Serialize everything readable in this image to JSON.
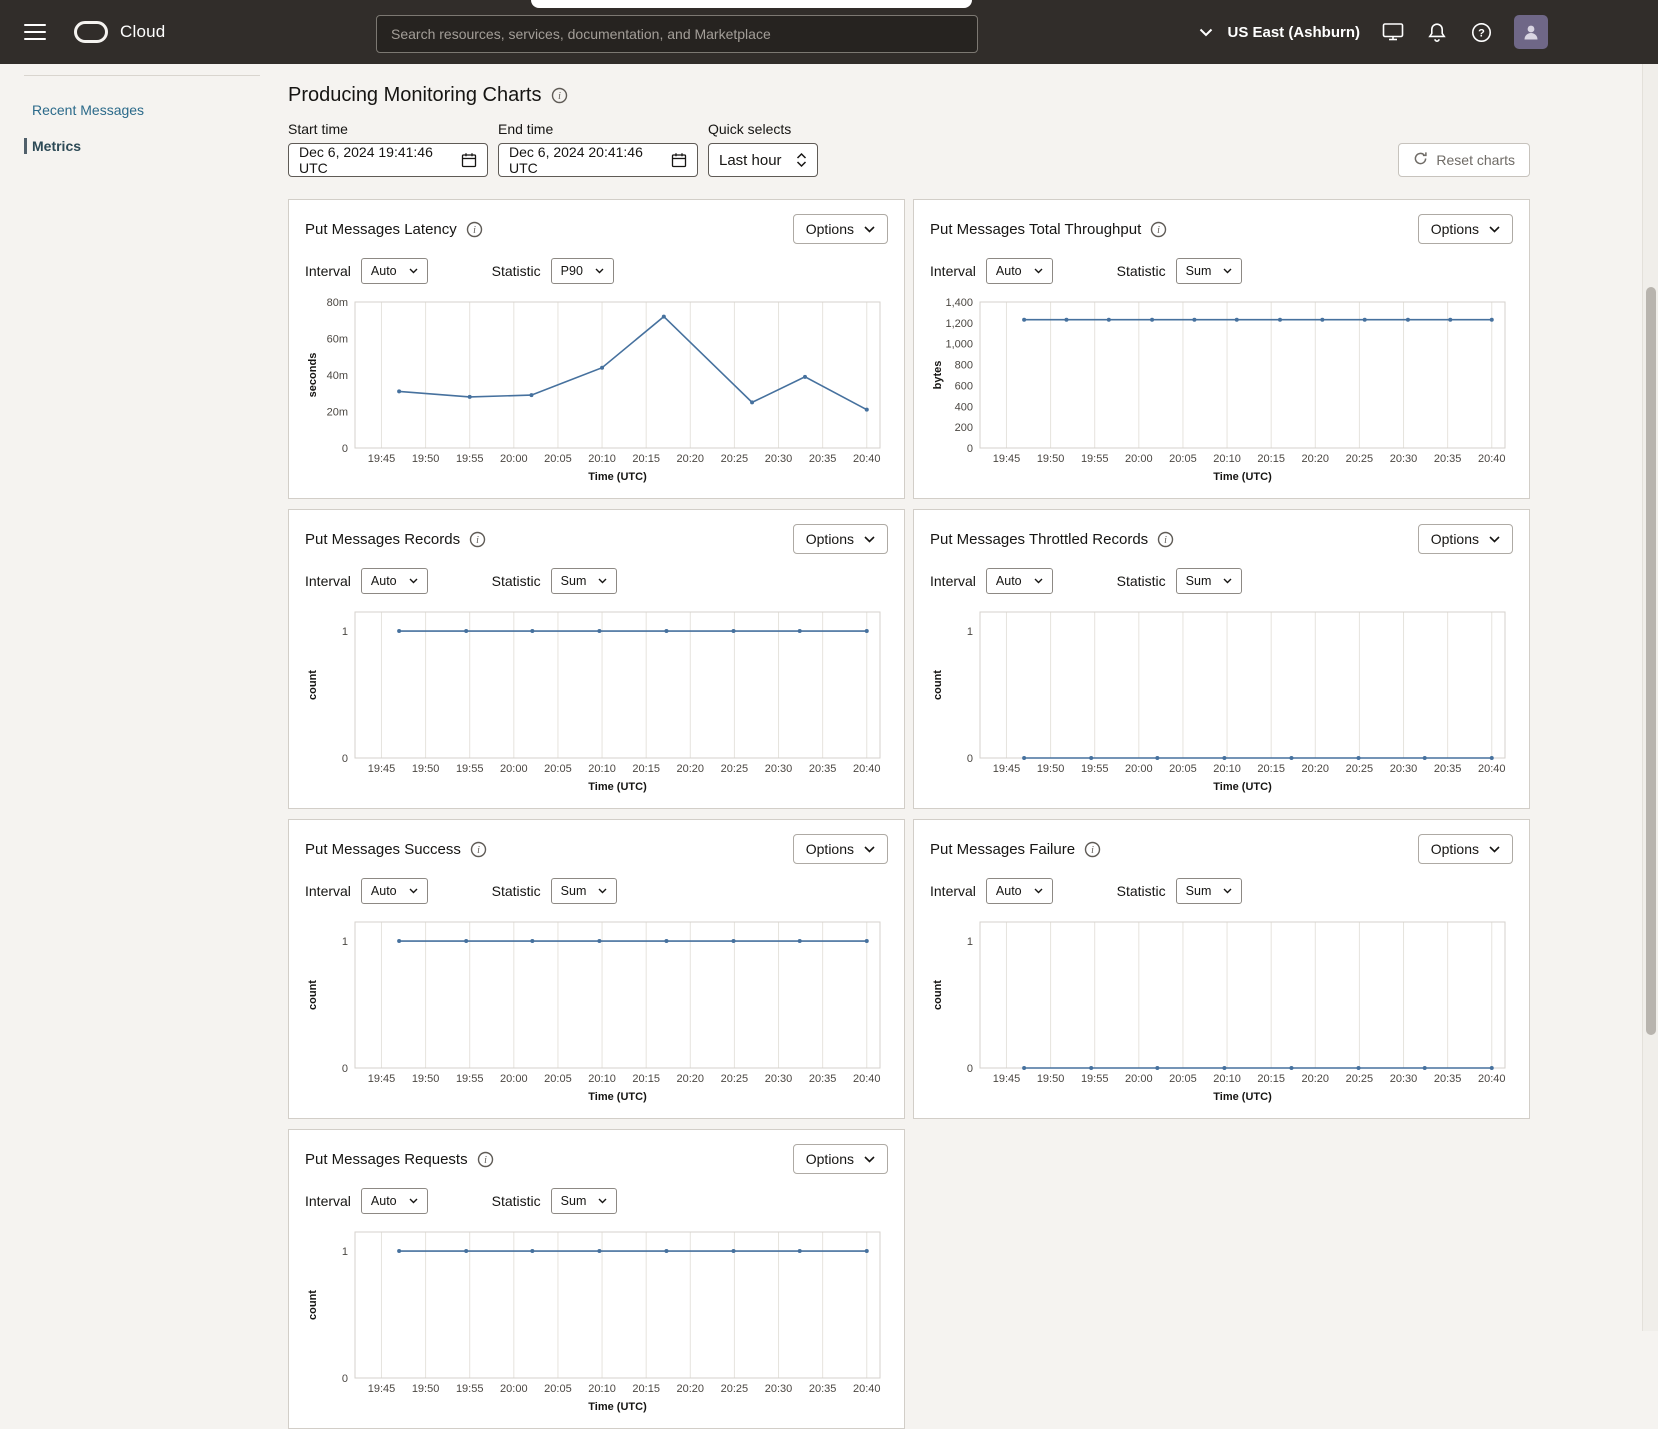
{
  "header": {
    "brand": "Cloud",
    "search_placeholder": "Search resources, services, documentation, and Marketplace",
    "region": "US East (Ashburn)"
  },
  "sidebar": {
    "items": [
      {
        "label": "Recent Messages",
        "active": false
      },
      {
        "label": "Metrics",
        "active": true
      }
    ]
  },
  "toolbar": {
    "title": "Producing Monitoring Charts",
    "start_time": {
      "label": "Start time",
      "value": "Dec 6, 2024 19:41:46 UTC"
    },
    "end_time": {
      "label": "End time",
      "value": "Dec 6, 2024 20:41:46 UTC"
    },
    "quick_selects": {
      "label": "Quick selects",
      "value": "Last hour"
    },
    "reset_label": "Reset charts"
  },
  "card_labels": {
    "interval": "Interval",
    "statistic": "Statistic",
    "options": "Options"
  },
  "chart_colors": {
    "line": "#46719e",
    "grid": "#e6e3de",
    "plot_border": "#d6d2cc"
  },
  "chart_data": [
    {
      "type": "line",
      "title": "Put Messages Latency",
      "interval": "Auto",
      "statistic": "P90",
      "xlabel": "Time (UTC)",
      "ylabel": "seconds",
      "x_ticks": [
        "19:45",
        "19:50",
        "19:55",
        "20:00",
        "20:05",
        "20:10",
        "20:15",
        "20:20",
        "20:25",
        "20:30",
        "20:35",
        "20:40"
      ],
      "xlim": [
        -3,
        56.5
      ],
      "ylim": [
        0,
        80
      ],
      "y_ticks": [
        {
          "v": 0,
          "label": "0"
        },
        {
          "v": 20,
          "label": "20m"
        },
        {
          "v": 40,
          "label": "40m"
        },
        {
          "v": 60,
          "label": "60m"
        },
        {
          "v": 80,
          "label": "80m"
        }
      ],
      "points": {
        "x": [
          2,
          10,
          17,
          25,
          32,
          42,
          48,
          55
        ],
        "y": [
          31,
          28,
          29,
          44,
          72,
          25,
          39,
          21
        ]
      }
    },
    {
      "type": "line",
      "title": "Put Messages Total Throughput",
      "interval": "Auto",
      "statistic": "Sum",
      "xlabel": "Time (UTC)",
      "ylabel": "bytes",
      "x_ticks": [
        "19:45",
        "19:50",
        "19:55",
        "20:00",
        "20:05",
        "20:10",
        "20:15",
        "20:20",
        "20:25",
        "20:30",
        "20:35",
        "20:40"
      ],
      "xlim": [
        -3,
        56.5
      ],
      "ylim": [
        0,
        1400
      ],
      "y_ticks": [
        {
          "v": 0,
          "label": "0"
        },
        {
          "v": 200,
          "label": "200"
        },
        {
          "v": 400,
          "label": "400"
        },
        {
          "v": 600,
          "label": "600"
        },
        {
          "v": 800,
          "label": "800"
        },
        {
          "v": 1000,
          "label": "1,000"
        },
        {
          "v": 1200,
          "label": "1,200"
        },
        {
          "v": 1400,
          "label": "1,400"
        }
      ],
      "points": {
        "x": [
          2,
          6.8,
          11.6,
          16.5,
          21.3,
          26.1,
          31,
          35.8,
          40.6,
          45.5,
          50.3,
          55
        ],
        "y": [
          1230,
          1230,
          1230,
          1230,
          1230,
          1230,
          1230,
          1230,
          1230,
          1230,
          1230,
          1230
        ]
      }
    },
    {
      "type": "line",
      "title": "Put Messages Records",
      "interval": "Auto",
      "statistic": "Sum",
      "xlabel": "Time (UTC)",
      "ylabel": "count",
      "x_ticks": [
        "19:45",
        "19:50",
        "19:55",
        "20:00",
        "20:05",
        "20:10",
        "20:15",
        "20:20",
        "20:25",
        "20:30",
        "20:35",
        "20:40"
      ],
      "xlim": [
        -3,
        56.5
      ],
      "ylim": [
        0,
        1.15
      ],
      "y_ticks": [
        {
          "v": 0,
          "label": "0"
        },
        {
          "v": 1,
          "label": "1"
        }
      ],
      "points": {
        "x": [
          2,
          9.6,
          17.1,
          24.7,
          32.3,
          39.9,
          47.4,
          55
        ],
        "y": [
          1,
          1,
          1,
          1,
          1,
          1,
          1,
          1
        ]
      }
    },
    {
      "type": "line",
      "title": "Put Messages Throttled Records",
      "interval": "Auto",
      "statistic": "Sum",
      "xlabel": "Time (UTC)",
      "ylabel": "count",
      "x_ticks": [
        "19:45",
        "19:50",
        "19:55",
        "20:00",
        "20:05",
        "20:10",
        "20:15",
        "20:20",
        "20:25",
        "20:30",
        "20:35",
        "20:40"
      ],
      "xlim": [
        -3,
        56.5
      ],
      "ylim": [
        0,
        1.15
      ],
      "y_ticks": [
        {
          "v": 0,
          "label": "0"
        },
        {
          "v": 1,
          "label": "1"
        }
      ],
      "points": {
        "x": [
          2,
          9.6,
          17.1,
          24.7,
          32.3,
          39.9,
          47.4,
          55
        ],
        "y": [
          0,
          0,
          0,
          0,
          0,
          0,
          0,
          0
        ]
      }
    },
    {
      "type": "line",
      "title": "Put Messages Success",
      "interval": "Auto",
      "statistic": "Sum",
      "xlabel": "Time (UTC)",
      "ylabel": "count",
      "x_ticks": [
        "19:45",
        "19:50",
        "19:55",
        "20:00",
        "20:05",
        "20:10",
        "20:15",
        "20:20",
        "20:25",
        "20:30",
        "20:35",
        "20:40"
      ],
      "xlim": [
        -3,
        56.5
      ],
      "ylim": [
        0,
        1.15
      ],
      "y_ticks": [
        {
          "v": 0,
          "label": "0"
        },
        {
          "v": 1,
          "label": "1"
        }
      ],
      "points": {
        "x": [
          2,
          9.6,
          17.1,
          24.7,
          32.3,
          39.9,
          47.4,
          55
        ],
        "y": [
          1,
          1,
          1,
          1,
          1,
          1,
          1,
          1
        ]
      }
    },
    {
      "type": "line",
      "title": "Put Messages Failure",
      "interval": "Auto",
      "statistic": "Sum",
      "xlabel": "Time (UTC)",
      "ylabel": "count",
      "x_ticks": [
        "19:45",
        "19:50",
        "19:55",
        "20:00",
        "20:05",
        "20:10",
        "20:15",
        "20:20",
        "20:25",
        "20:30",
        "20:35",
        "20:40"
      ],
      "xlim": [
        -3,
        56.5
      ],
      "ylim": [
        0,
        1.15
      ],
      "y_ticks": [
        {
          "v": 0,
          "label": "0"
        },
        {
          "v": 1,
          "label": "1"
        }
      ],
      "points": {
        "x": [
          2,
          9.6,
          17.1,
          24.7,
          32.3,
          39.9,
          47.4,
          55
        ],
        "y": [
          0,
          0,
          0,
          0,
          0,
          0,
          0,
          0
        ]
      }
    },
    {
      "type": "line",
      "title": "Put Messages Requests",
      "interval": "Auto",
      "statistic": "Sum",
      "xlabel": "Time (UTC)",
      "ylabel": "count",
      "x_ticks": [
        "19:45",
        "19:50",
        "19:55",
        "20:00",
        "20:05",
        "20:10",
        "20:15",
        "20:20",
        "20:25",
        "20:30",
        "20:35",
        "20:40"
      ],
      "xlim": [
        -3,
        56.5
      ],
      "ylim": [
        0,
        1.15
      ],
      "y_ticks": [
        {
          "v": 0,
          "label": "0"
        },
        {
          "v": 1,
          "label": "1"
        }
      ],
      "points": {
        "x": [
          2,
          9.6,
          17.1,
          24.7,
          32.3,
          39.9,
          47.4,
          55
        ],
        "y": [
          1,
          1,
          1,
          1,
          1,
          1,
          1,
          1
        ]
      }
    }
  ]
}
